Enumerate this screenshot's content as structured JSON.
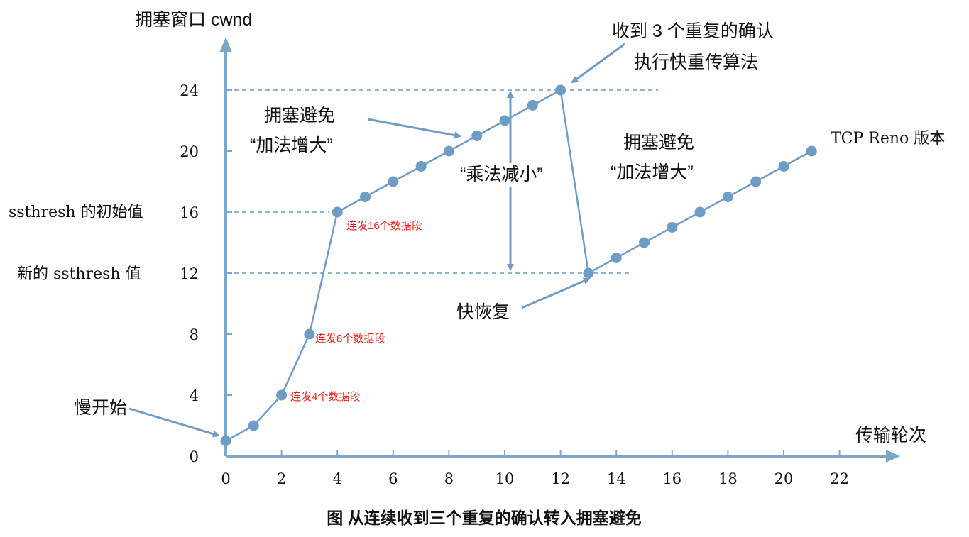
{
  "colors": {
    "axis": "#7da6c9",
    "series": "#6f9cc6",
    "red_text": "#e8201e"
  },
  "labels": {
    "y_axis_title": "拥塞窗口  cwnd",
    "x_axis_title": "传输轮次",
    "ssthresh_init": "ssthresh  的初始值",
    "ssthresh_new": "新的  ssthresh  值",
    "slow_start": "慢开始",
    "ca1_line1": "拥塞避免",
    "ca1_line2": "“加法增大”",
    "ca2_line1": "拥塞避免",
    "ca2_line2": "“加法增大”",
    "multiplicative": "“乘法减小”",
    "triple_ack_line1": "收到  3  个重复的确认",
    "triple_ack_line2": "执行快重传算法",
    "fast_recovery": "快恢复",
    "version": "TCP Reno  版本",
    "send16": "连发16个数据段",
    "send8": "连发8个数据段",
    "send4": "连发4个数据段",
    "caption": "图  从连续收到三个重复的确认转入拥塞避免"
  },
  "chart_data": {
    "type": "line",
    "title": "图  从连续收到三个重复的确认转入拥塞避免",
    "xlabel": "传输轮次",
    "ylabel": "拥塞窗口  cwnd",
    "x_ticks": [
      "0",
      "2",
      "4",
      "6",
      "8",
      "10",
      "12",
      "14",
      "16",
      "18",
      "20",
      "22"
    ],
    "y_ticks": [
      "0",
      "4",
      "8",
      "12",
      "16",
      "20",
      "24"
    ],
    "xlim": [
      0,
      24
    ],
    "ylim": [
      0,
      27
    ],
    "grid": false,
    "reference_lines": [
      {
        "y": 24,
        "x_from": 0,
        "x_to": 15.5
      },
      {
        "y": 16,
        "x_from": 0,
        "x_to": 4
      },
      {
        "y": 12,
        "x_from": 0,
        "x_to": 14.5
      }
    ],
    "series": [
      {
        "points": [
          [
            0,
            1
          ],
          [
            1,
            2
          ],
          [
            2,
            4
          ],
          [
            3,
            8
          ],
          [
            4,
            16
          ],
          [
            5,
            17
          ],
          [
            6,
            18
          ],
          [
            7,
            19
          ],
          [
            8,
            20
          ],
          [
            9,
            21
          ],
          [
            10,
            22
          ],
          [
            11,
            23
          ],
          [
            12,
            24
          ],
          [
            13,
            12
          ],
          [
            14,
            13
          ],
          [
            15,
            14
          ],
          [
            16,
            15
          ],
          [
            17,
            16
          ],
          [
            18,
            17
          ],
          [
            19,
            18
          ],
          [
            20,
            19
          ],
          [
            21,
            20
          ]
        ]
      }
    ]
  }
}
